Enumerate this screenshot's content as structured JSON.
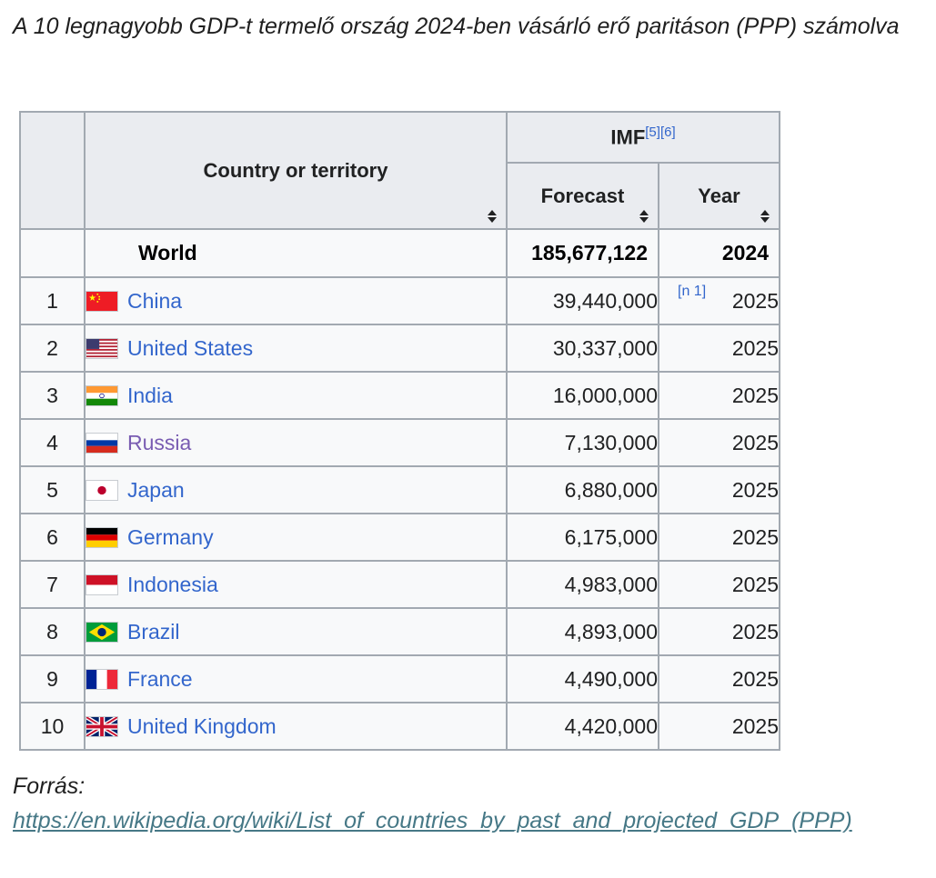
{
  "title": "A 10 legnagyobb GDP-t termelő ország 2024-ben vásárló erő paritáson (PPP) számolva",
  "table": {
    "group_header": "IMF",
    "group_refs": "[5][6]",
    "country_header": "Country or territory",
    "forecast_header": "Forecast",
    "year_header": "Year",
    "world": {
      "name": "World",
      "forecast": "185,677,122",
      "year": "2024"
    },
    "rows": [
      {
        "rank": "1",
        "country": "China",
        "forecast": "39,440,000",
        "year": "2025",
        "note": "[n 1]",
        "flag": "china-flag"
      },
      {
        "rank": "2",
        "country": "United States",
        "forecast": "30,337,000",
        "year": "2025",
        "flag": "usa-flag"
      },
      {
        "rank": "3",
        "country": "India",
        "forecast": "16,000,000",
        "year": "2025",
        "flag": "india-flag"
      },
      {
        "rank": "4",
        "country": "Russia",
        "forecast": "7,130,000",
        "year": "2025",
        "flag": "russia-flag"
      },
      {
        "rank": "5",
        "country": "Japan",
        "forecast": "6,880,000",
        "year": "2025",
        "flag": "japan-flag"
      },
      {
        "rank": "6",
        "country": "Germany",
        "forecast": "6,175,000",
        "year": "2025",
        "flag": "germany-flag"
      },
      {
        "rank": "7",
        "country": "Indonesia",
        "forecast": "4,983,000",
        "year": "2025",
        "flag": "indonesia-flag"
      },
      {
        "rank": "8",
        "country": "Brazil",
        "forecast": "4,893,000",
        "year": "2025",
        "flag": "brazil-flag"
      },
      {
        "rank": "9",
        "country": "France",
        "forecast": "4,490,000",
        "year": "2025",
        "flag": "france-flag"
      },
      {
        "rank": "10",
        "country": "United Kingdom",
        "forecast": "4,420,000",
        "year": "2025",
        "flag": "uk-flag"
      }
    ]
  },
  "source": {
    "label": "Forrás:",
    "url": "https://en.wikipedia.org/wiki/List_of_countries_by_past_and_projected_GDP_(PPP)"
  },
  "colors": {
    "link": "#3366cc",
    "visited_link": "#795cb2",
    "header_bg": "#eaecf0",
    "cell_bg": "#f8f9fa",
    "border": "#a2a9b1",
    "source_link": "#467886"
  }
}
